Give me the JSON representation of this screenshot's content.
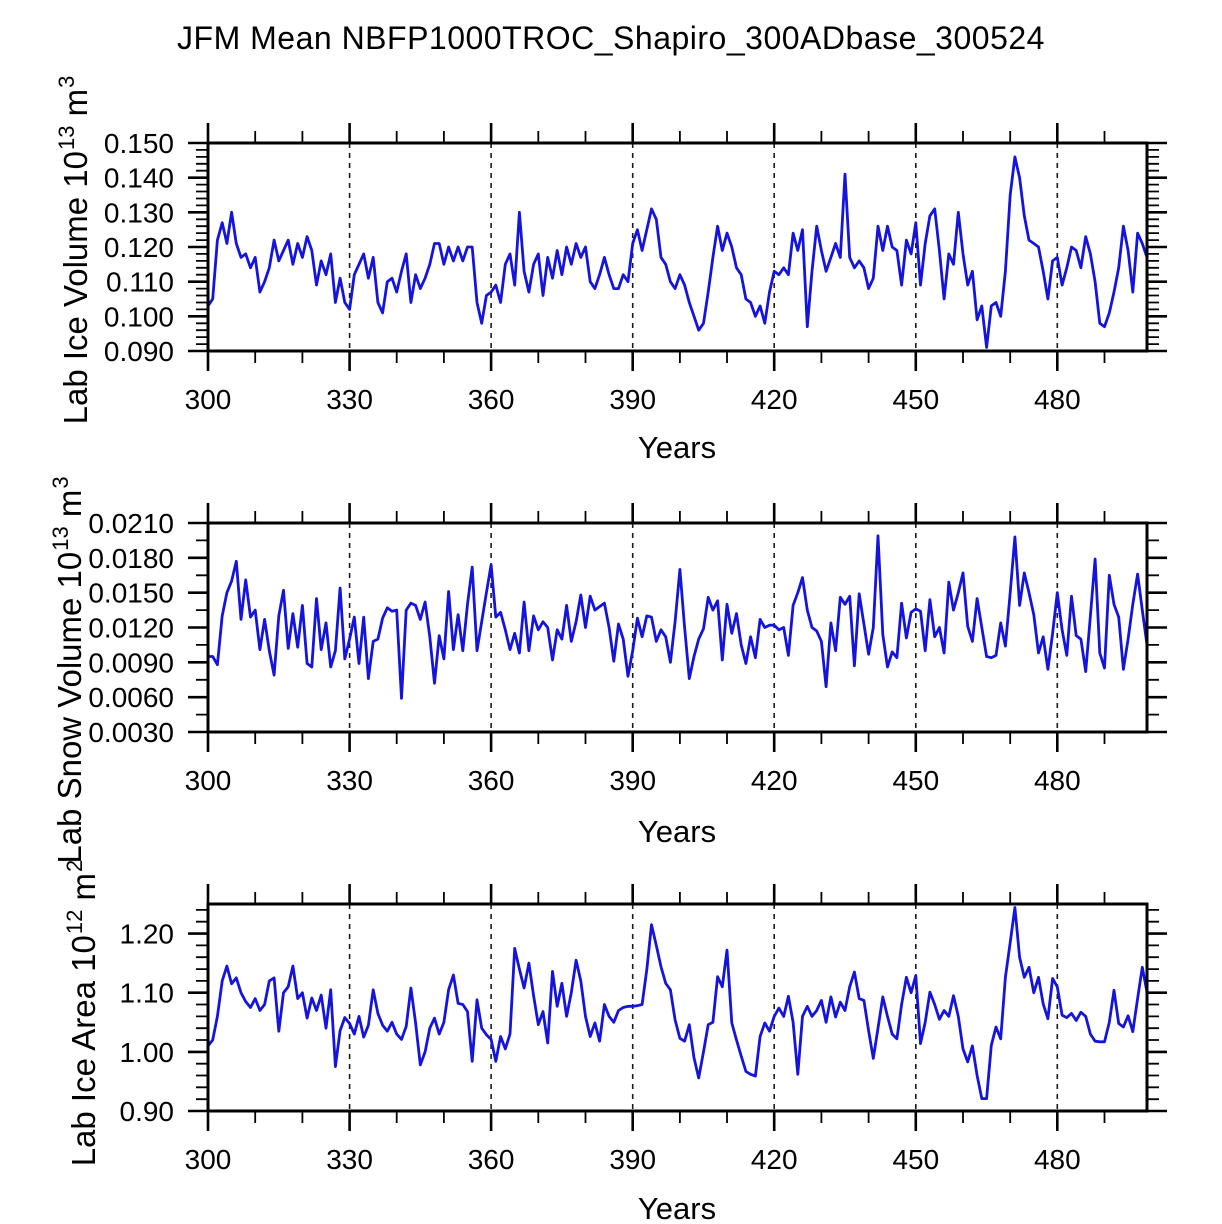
{
  "title": "JFM Mean NBFP1000TROC_Shapiro_300ADbase_300524",
  "line_color": "#1414dd",
  "x_axis": {
    "label": "Years",
    "start": 300,
    "end": 499,
    "major_ticks": [
      300,
      330,
      360,
      390,
      420,
      450,
      480
    ],
    "minor_step": 10,
    "gridlines": [
      330,
      360,
      390,
      420,
      450,
      480
    ]
  },
  "chart_data": [
    {
      "type": "line",
      "name": "ice-volume",
      "ylabel_base": "Lab Ice Volume 10",
      "ylabel_exp": "13",
      "ylabel_unit": " m",
      "ylabel_unit_exp": "3",
      "xlabel": "Years",
      "ylim": [
        0.09,
        0.15
      ],
      "y_major_step": 0.01,
      "y_minor_step": 0.002,
      "y_tick_labels": [
        "0.090",
        "0.100",
        "0.110",
        "0.120",
        "0.130",
        "0.140",
        "0.150"
      ],
      "grid": "dashed-vertical",
      "x_start": 300,
      "x_step": 1,
      "values": [
        0.103,
        0.105,
        0.122,
        0.127,
        0.121,
        0.13,
        0.121,
        0.117,
        0.118,
        0.114,
        0.117,
        0.107,
        0.11,
        0.114,
        0.122,
        0.116,
        0.119,
        0.122,
        0.115,
        0.121,
        0.117,
        0.123,
        0.119,
        0.109,
        0.116,
        0.112,
        0.118,
        0.104,
        0.111,
        0.104,
        0.102,
        0.112,
        0.115,
        0.118,
        0.111,
        0.117,
        0.104,
        0.101,
        0.11,
        0.111,
        0.107,
        0.113,
        0.118,
        0.104,
        0.112,
        0.108,
        0.111,
        0.115,
        0.121,
        0.121,
        0.115,
        0.12,
        0.116,
        0.12,
        0.116,
        0.12,
        0.12,
        0.104,
        0.098,
        0.106,
        0.107,
        0.109,
        0.104,
        0.115,
        0.118,
        0.109,
        0.13,
        0.113,
        0.107,
        0.115,
        0.118,
        0.106,
        0.117,
        0.111,
        0.119,
        0.112,
        0.12,
        0.115,
        0.121,
        0.117,
        0.12,
        0.11,
        0.108,
        0.112,
        0.117,
        0.112,
        0.108,
        0.108,
        0.112,
        0.11,
        0.121,
        0.125,
        0.119,
        0.125,
        0.131,
        0.128,
        0.117,
        0.115,
        0.11,
        0.108,
        0.112,
        0.109,
        0.104,
        0.1,
        0.096,
        0.098,
        0.107,
        0.117,
        0.126,
        0.119,
        0.124,
        0.12,
        0.114,
        0.112,
        0.105,
        0.104,
        0.1,
        0.103,
        0.098,
        0.107,
        0.113,
        0.112,
        0.114,
        0.112,
        0.124,
        0.119,
        0.125,
        0.097,
        0.113,
        0.126,
        0.119,
        0.113,
        0.117,
        0.121,
        0.117,
        0.141,
        0.117,
        0.114,
        0.116,
        0.114,
        0.108,
        0.111,
        0.126,
        0.119,
        0.126,
        0.12,
        0.119,
        0.109,
        0.122,
        0.118,
        0.127,
        0.109,
        0.121,
        0.129,
        0.131,
        0.119,
        0.105,
        0.118,
        0.115,
        0.13,
        0.118,
        0.109,
        0.113,
        0.099,
        0.103,
        0.091,
        0.103,
        0.104,
        0.1,
        0.113,
        0.135,
        0.146,
        0.14,
        0.129,
        0.122,
        0.121,
        0.12,
        0.113,
        0.105,
        0.116,
        0.117,
        0.109,
        0.114,
        0.12,
        0.119,
        0.114,
        0.123,
        0.118,
        0.11,
        0.098,
        0.097,
        0.101,
        0.107,
        0.114,
        0.126,
        0.119,
        0.107,
        0.124,
        0.121,
        0.117
      ]
    },
    {
      "type": "line",
      "name": "snow-volume",
      "ylabel_base": "Lab Snow Volume 10",
      "ylabel_exp": "13",
      "ylabel_unit": " m",
      "ylabel_unit_exp": "3",
      "xlabel": "Years",
      "ylim": [
        0.003,
        0.021
      ],
      "y_major_step": 0.003,
      "y_minor_step": 0.0015,
      "y_tick_labels": [
        "0.0030",
        "0.0060",
        "0.0090",
        "0.0120",
        "0.0150",
        "0.0180",
        "0.0210"
      ],
      "grid": "dashed-vertical",
      "x_start": 300,
      "x_step": 1,
      "values": [
        0.0095,
        0.0095,
        0.0088,
        0.013,
        0.015,
        0.016,
        0.0177,
        0.0127,
        0.0161,
        0.0129,
        0.0135,
        0.0101,
        0.0127,
        0.01,
        0.0079,
        0.013,
        0.0152,
        0.0102,
        0.0132,
        0.0103,
        0.0139,
        0.0089,
        0.0086,
        0.0145,
        0.0101,
        0.0124,
        0.0086,
        0.01,
        0.0154,
        0.0093,
        0.011,
        0.0129,
        0.0089,
        0.0129,
        0.0076,
        0.0108,
        0.011,
        0.0128,
        0.0137,
        0.0134,
        0.0135,
        0.0059,
        0.0135,
        0.0141,
        0.0139,
        0.0127,
        0.0142,
        0.0112,
        0.0072,
        0.0113,
        0.0093,
        0.0151,
        0.0101,
        0.0131,
        0.01,
        0.014,
        0.0172,
        0.01,
        0.0125,
        0.015,
        0.0174,
        0.0129,
        0.0133,
        0.0118,
        0.0101,
        0.0115,
        0.0098,
        0.0142,
        0.01,
        0.013,
        0.0118,
        0.0125,
        0.012,
        0.0092,
        0.0118,
        0.011,
        0.0139,
        0.0108,
        0.0125,
        0.0148,
        0.012,
        0.0147,
        0.0135,
        0.0138,
        0.0141,
        0.012,
        0.0091,
        0.0123,
        0.011,
        0.0078,
        0.01,
        0.0128,
        0.0112,
        0.013,
        0.0129,
        0.0108,
        0.0118,
        0.0112,
        0.009,
        0.0125,
        0.017,
        0.012,
        0.0076,
        0.0095,
        0.011,
        0.0119,
        0.0146,
        0.0135,
        0.0143,
        0.0092,
        0.014,
        0.0115,
        0.0132,
        0.0105,
        0.0089,
        0.0112,
        0.0094,
        0.0127,
        0.012,
        0.0122,
        0.0122,
        0.0118,
        0.012,
        0.0096,
        0.0139,
        0.015,
        0.0163,
        0.0135,
        0.012,
        0.0117,
        0.0108,
        0.0069,
        0.0124,
        0.01,
        0.0146,
        0.014,
        0.0147,
        0.0087,
        0.0149,
        0.0123,
        0.0097,
        0.012,
        0.0199,
        0.0114,
        0.0086,
        0.0099,
        0.0094,
        0.0141,
        0.0111,
        0.0133,
        0.0136,
        0.0134,
        0.01,
        0.0144,
        0.0112,
        0.012,
        0.0098,
        0.0159,
        0.0135,
        0.015,
        0.0167,
        0.0121,
        0.0108,
        0.0145,
        0.012,
        0.0095,
        0.0094,
        0.0096,
        0.0124,
        0.0104,
        0.015,
        0.0198,
        0.0139,
        0.0167,
        0.015,
        0.0131,
        0.0098,
        0.0112,
        0.0084,
        0.0115,
        0.015,
        0.0118,
        0.0096,
        0.0147,
        0.0113,
        0.011,
        0.0082,
        0.013,
        0.0179,
        0.0098,
        0.0085,
        0.0165,
        0.014,
        0.0129,
        0.0084,
        0.011,
        0.014,
        0.0166,
        0.0135,
        0.0105
      ]
    },
    {
      "type": "line",
      "name": "ice-area",
      "ylabel_base": "Lab Ice Area 10",
      "ylabel_exp": "12",
      "ylabel_unit": " m",
      "ylabel_unit_exp": "2",
      "xlabel": "Years",
      "ylim": [
        0.9,
        1.25
      ],
      "y_major_step": 0.1,
      "y_minor_step": 0.02,
      "y_tick_labels": [
        "0.90",
        "1.00",
        "1.10",
        "1.20"
      ],
      "grid": "dashed-vertical",
      "x_start": 300,
      "x_step": 1,
      "values": [
        1.01,
        1.02,
        1.06,
        1.12,
        1.145,
        1.115,
        1.125,
        1.1,
        1.085,
        1.075,
        1.09,
        1.07,
        1.08,
        1.12,
        1.125,
        1.035,
        1.1,
        1.11,
        1.145,
        1.09,
        1.1,
        1.057,
        1.091,
        1.07,
        1.096,
        1.04,
        1.105,
        0.975,
        1.036,
        1.058,
        1.048,
        1.03,
        1.06,
        1.025,
        1.045,
        1.105,
        1.065,
        1.045,
        1.035,
        1.05,
        1.03,
        1.021,
        1.043,
        1.108,
        1.049,
        0.978,
        1.0,
        1.04,
        1.057,
        1.03,
        1.05,
        1.105,
        1.13,
        1.082,
        1.08,
        1.068,
        0.984,
        1.088,
        1.04,
        1.029,
        1.021,
        0.984,
        1.026,
        1.005,
        1.03,
        1.175,
        1.14,
        1.108,
        1.15,
        1.095,
        1.046,
        1.068,
        1.015,
        1.136,
        1.077,
        1.116,
        1.06,
        1.1,
        1.155,
        1.12,
        1.06,
        1.026,
        1.049,
        1.018,
        1.08,
        1.06,
        1.05,
        1.07,
        1.075,
        1.077,
        1.077,
        1.078,
        1.08,
        1.139,
        1.215,
        1.18,
        1.144,
        1.116,
        1.105,
        1.054,
        1.023,
        1.018,
        1.046,
        0.99,
        0.956,
        1.0,
        1.046,
        1.05,
        1.127,
        1.11,
        1.172,
        1.049,
        1.02,
        0.993,
        0.967,
        0.962,
        0.959,
        1.026,
        1.049,
        1.035,
        1.06,
        1.074,
        1.06,
        1.094,
        1.05,
        0.962,
        1.06,
        1.077,
        1.06,
        1.07,
        1.087,
        1.05,
        1.093,
        1.059,
        1.084,
        1.07,
        1.11,
        1.135,
        1.09,
        1.087,
        1.036,
        0.989,
        1.04,
        1.093,
        1.06,
        1.03,
        1.022,
        1.08,
        1.126,
        1.1,
        1.129,
        1.014,
        1.05,
        1.101,
        1.08,
        1.055,
        1.07,
        1.06,
        1.095,
        1.06,
        1.005,
        0.983,
        1.01,
        0.96,
        0.921,
        0.921,
        1.011,
        1.042,
        1.022,
        1.126,
        1.185,
        1.244,
        1.16,
        1.126,
        1.143,
        1.1,
        1.126,
        1.081,
        1.056,
        1.124,
        1.11,
        1.062,
        1.058,
        1.065,
        1.053,
        1.067,
        1.06,
        1.03,
        1.018,
        1.017,
        1.017,
        1.05,
        1.104,
        1.048,
        1.042,
        1.061,
        1.034,
        1.09,
        1.143,
        1.101
      ]
    }
  ]
}
